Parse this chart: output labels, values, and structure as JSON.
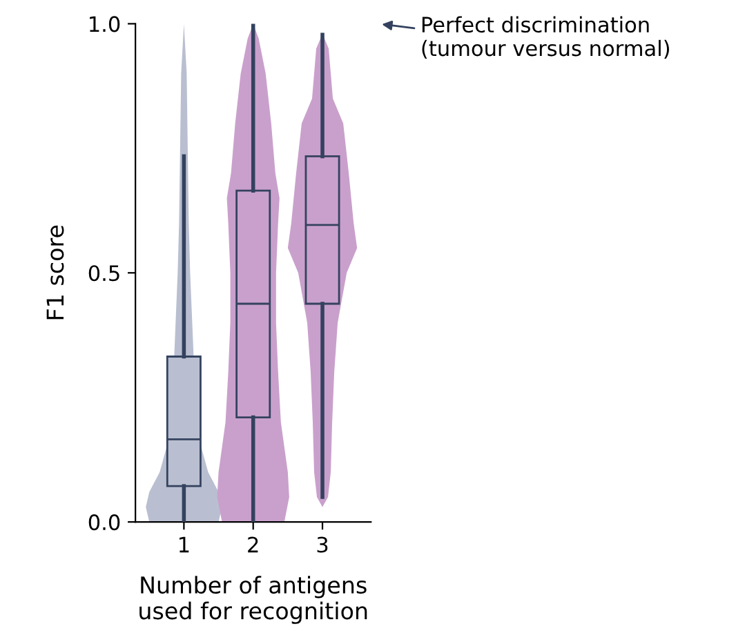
{
  "chart_data": {
    "type": "box",
    "xlabel": "Number of antigens\nused for recognition",
    "ylabel": "F1 score",
    "categories": [
      "1",
      "2",
      "3"
    ],
    "colors": [
      "#b9bfd0",
      "#c9a0cc",
      "#c9a0cc"
    ],
    "boxes": [
      {
        "low": 0.0,
        "q1": 0.072,
        "median": 0.166,
        "q3": 0.332,
        "high": 0.734
      },
      {
        "low": 0.0,
        "q1": 0.21,
        "median": 0.438,
        "q3": 0.665,
        "high": 1.0
      },
      {
        "low": 0.05,
        "q1": 0.438,
        "median": 0.596,
        "q3": 0.734,
        "high": 0.978
      }
    ],
    "ylim": [
      0,
      1
    ],
    "yticks": [
      {
        "value": 0,
        "label": "0.0"
      },
      0.5,
      {
        "value": 1,
        "label": "1.0"
      }
    ],
    "grid": false,
    "annotations": [
      "Perfect discrimination\n(tumour versus normal)"
    ]
  }
}
